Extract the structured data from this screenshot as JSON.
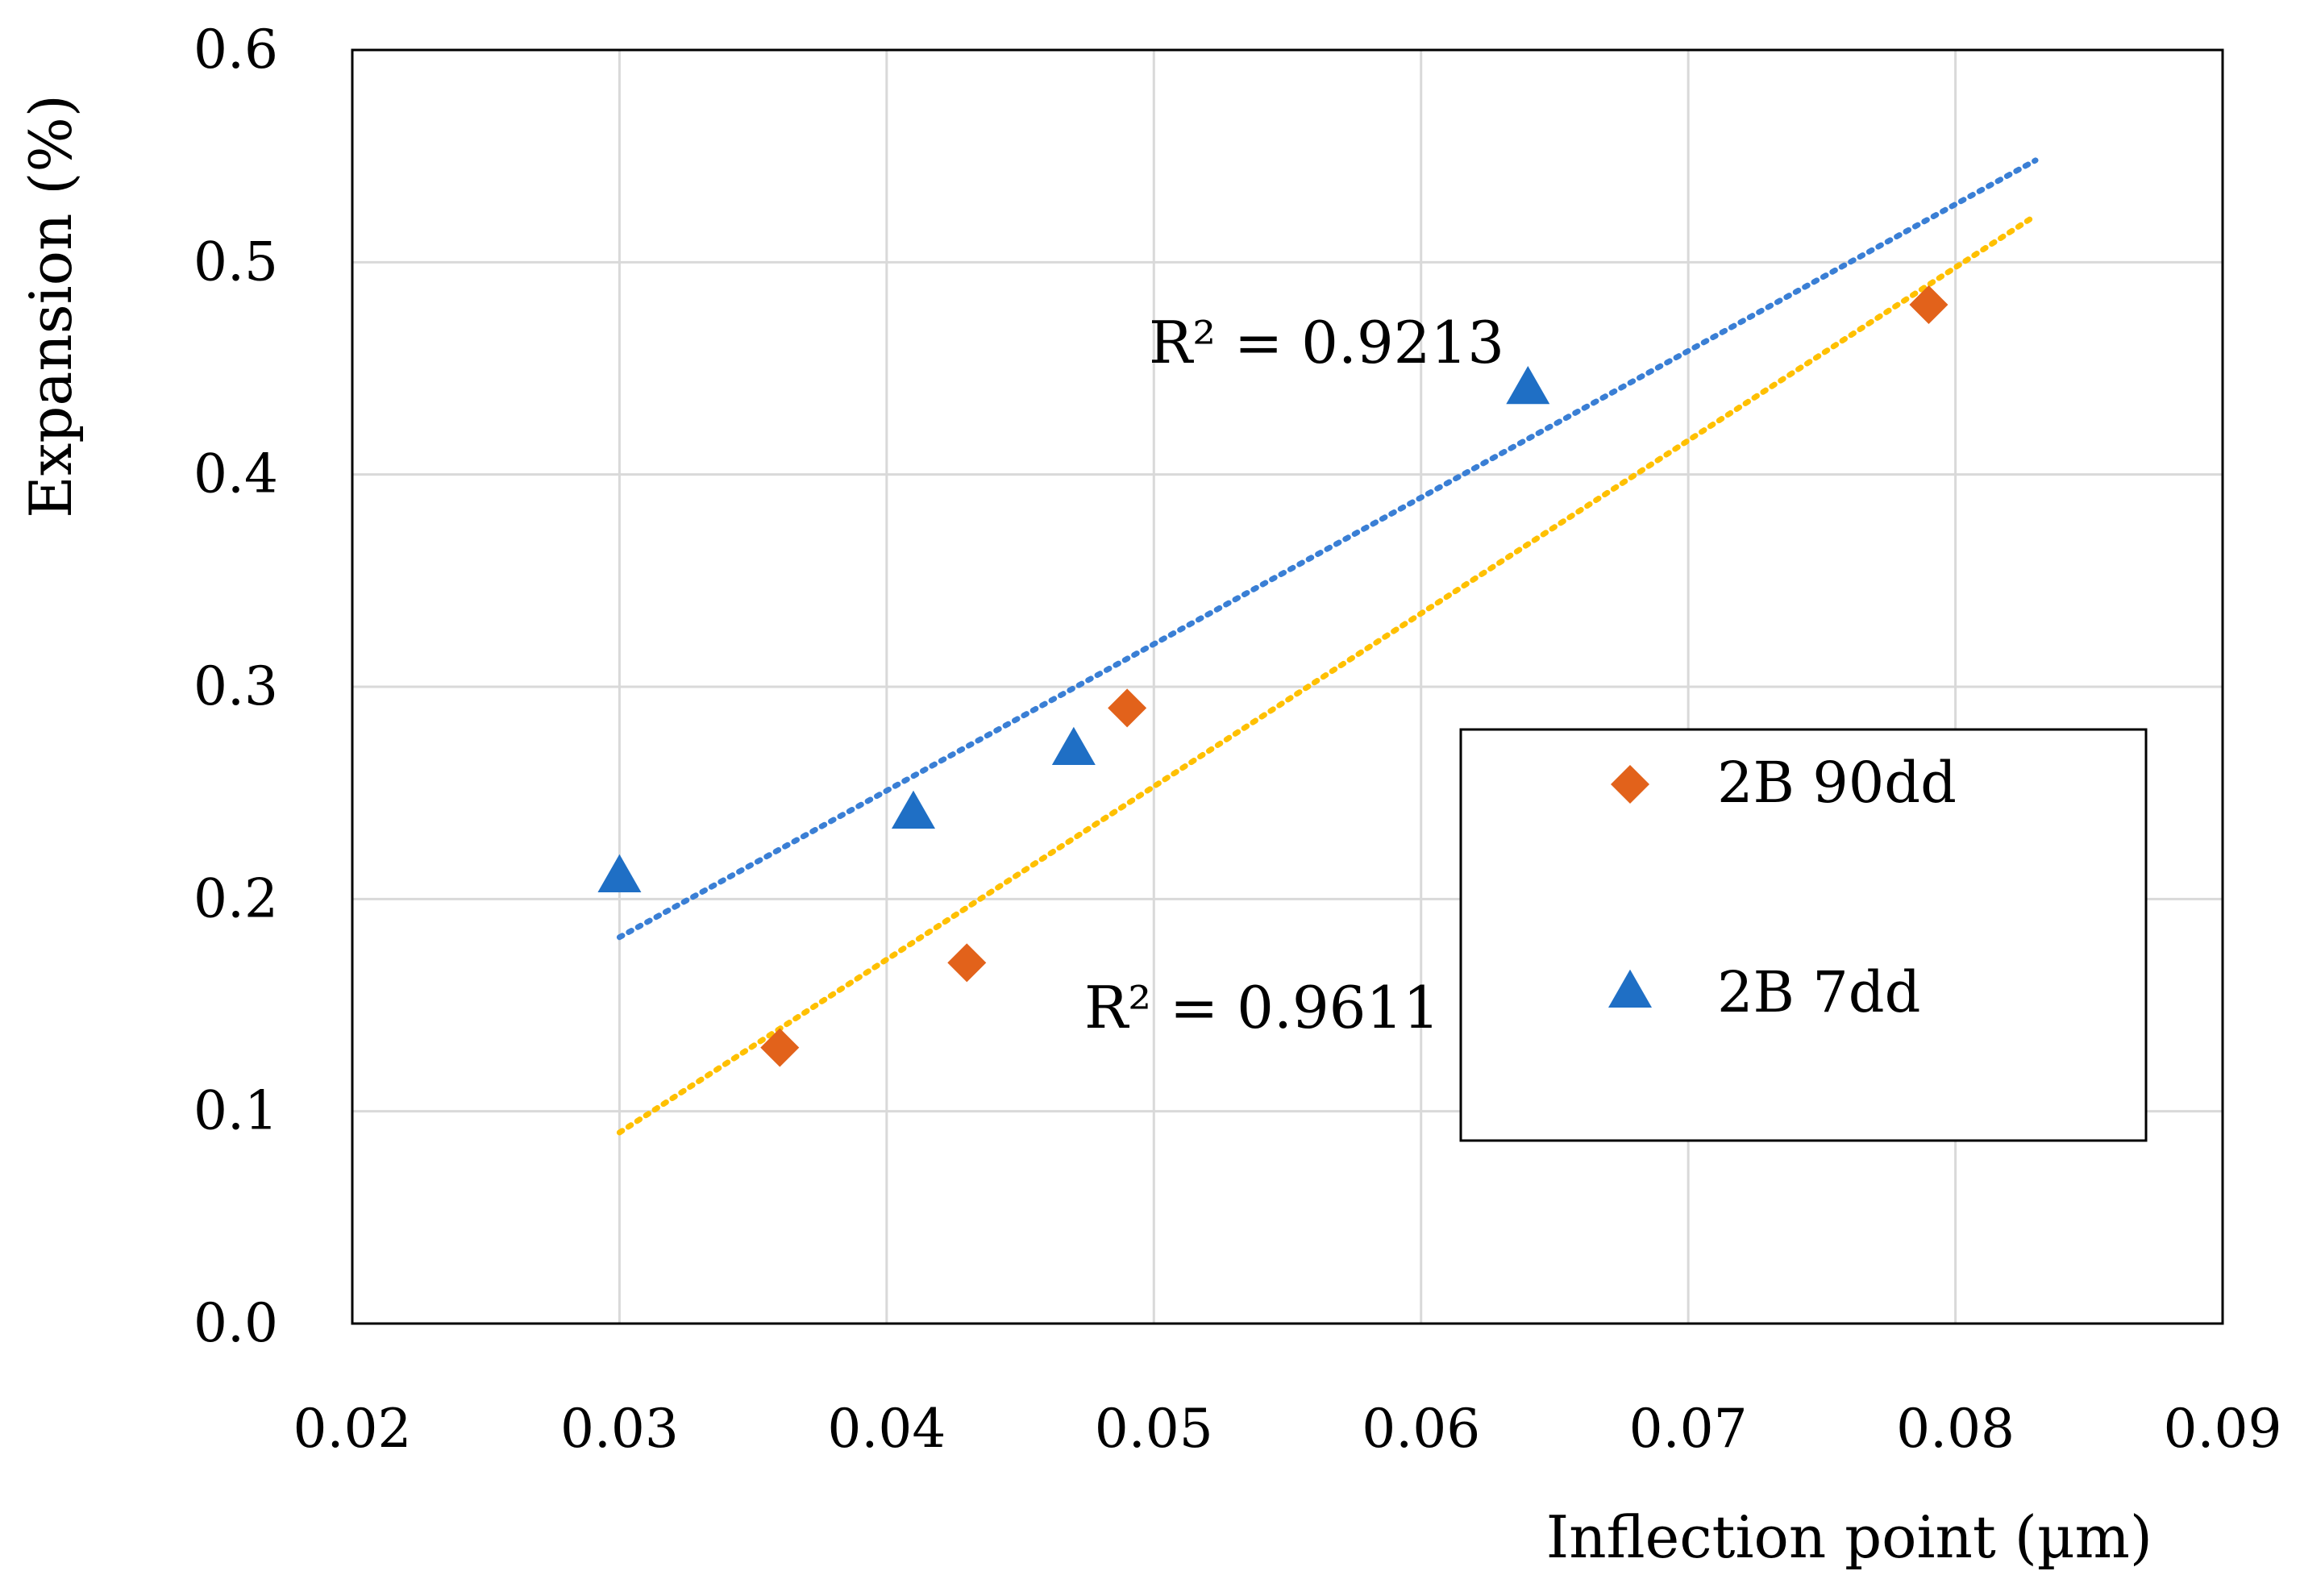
{
  "chart_data": {
    "type": "scatter",
    "title": "",
    "xlabel": "Inflection point (µm)",
    "ylabel": "Expansion (%)",
    "xlim": [
      0.02,
      0.09
    ],
    "ylim": [
      0.0,
      0.6
    ],
    "x_ticks": [
      "0.02",
      "0.03",
      "0.04",
      "0.05",
      "0.06",
      "0.07",
      "0.08",
      "0.09"
    ],
    "y_ticks": [
      "0.0",
      "0.1",
      "0.2",
      "0.3",
      "0.4",
      "0.5",
      "0.6"
    ],
    "grid": true,
    "legend_position": "center-right",
    "series": [
      {
        "name": "2B 90dd",
        "marker": "diamond",
        "color": "#E2621B",
        "x": [
          0.036,
          0.043,
          0.049,
          0.079
        ],
        "y": [
          0.13,
          0.17,
          0.29,
          0.48
        ],
        "trendline": {
          "style": "dotted",
          "color": "#FFC000",
          "x": [
            0.03,
            0.083
          ],
          "y": [
            0.09,
            0.522
          ],
          "label": "R² = 0.9611"
        }
      },
      {
        "name": "2B 7dd",
        "marker": "triangle",
        "color": "#1F6FC5",
        "x": [
          0.03,
          0.041,
          0.047,
          0.064
        ],
        "y": [
          0.21,
          0.24,
          0.27,
          0.44
        ],
        "trendline": {
          "style": "dotted",
          "color": "#3A7FD5",
          "x": [
            0.03,
            0.083
          ],
          "y": [
            0.182,
            0.548
          ],
          "label": "R² = 0.9213"
        }
      }
    ]
  }
}
